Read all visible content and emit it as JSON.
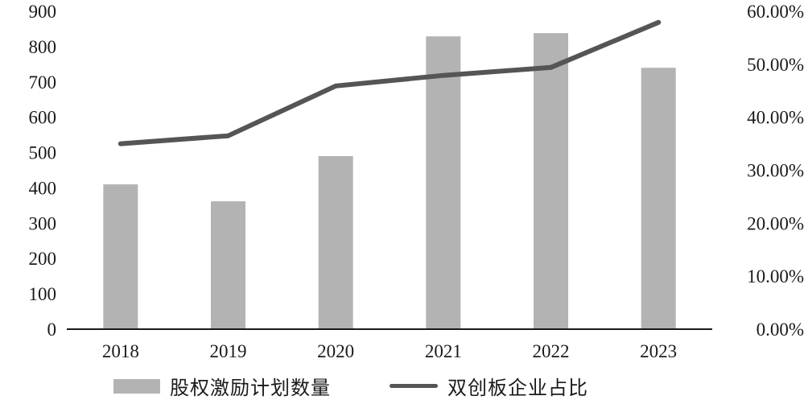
{
  "chart_data": {
    "type": "bar+line",
    "title": "",
    "categories": [
      "2018",
      "2019",
      "2020",
      "2021",
      "2022",
      "2023"
    ],
    "series": [
      {
        "name": "股权激励计划数量",
        "type": "bar",
        "axis": "left",
        "color": "#b3b3b3",
        "values": [
          410,
          362,
          490,
          829,
          838,
          740
        ]
      },
      {
        "name": "双创板企业占比",
        "type": "line",
        "axis": "right",
        "color": "#555555",
        "values": [
          35.0,
          36.5,
          45.9,
          47.9,
          49.4,
          57.9
        ],
        "unit": "%"
      }
    ],
    "left_axis": {
      "ylim": [
        0,
        900
      ],
      "ticks": [
        "0",
        "100",
        "200",
        "300",
        "400",
        "500",
        "600",
        "700",
        "800",
        "900"
      ]
    },
    "right_axis": {
      "ylim": [
        0,
        60
      ],
      "ticks": [
        "0.00%",
        "10.00%",
        "20.00%",
        "30.00%",
        "40.00%",
        "50.00%",
        "60.00%"
      ]
    },
    "xlabel": "",
    "ylabel": "",
    "grid": false,
    "legend_position": "bottom"
  },
  "legend": {
    "bar_label": "股权激励计划数量",
    "line_label": "双创板企业占比"
  }
}
